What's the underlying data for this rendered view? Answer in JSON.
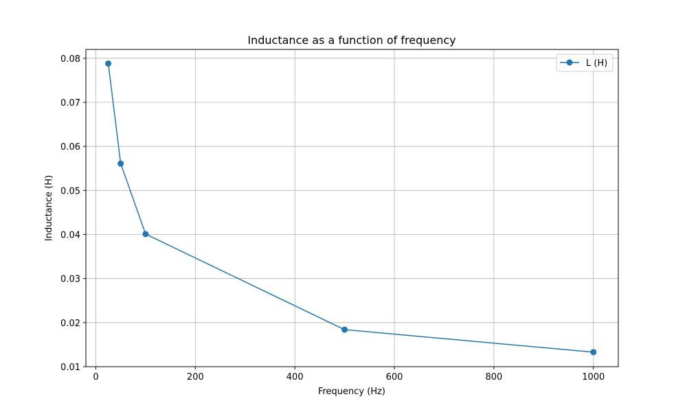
{
  "chart_data": {
    "type": "line",
    "title": "Inductance as a function of frequency",
    "xlabel": "Frequency (Hz)",
    "ylabel": "Inductance (H)",
    "xlim": [
      -20,
      1050
    ],
    "ylim": [
      0.01,
      0.082
    ],
    "xticks": [
      0,
      200,
      400,
      600,
      800,
      1000
    ],
    "xtick_labels": [
      "0",
      "200",
      "400",
      "600",
      "800",
      "1000"
    ],
    "yticks": [
      0.01,
      0.02,
      0.03,
      0.04,
      0.05,
      0.06,
      0.07,
      0.08
    ],
    "ytick_labels": [
      "0.01",
      "0.02",
      "0.03",
      "0.04",
      "0.05",
      "0.06",
      "0.07",
      "0.08"
    ],
    "grid": true,
    "legend_position": "upper right",
    "series": [
      {
        "name": "L (H)",
        "color": "#1f77b4",
        "marker": "circle",
        "x": [
          25,
          50,
          100,
          500,
          1000
        ],
        "y": [
          0.0788,
          0.0561,
          0.0401,
          0.0184,
          0.0133
        ]
      }
    ]
  }
}
